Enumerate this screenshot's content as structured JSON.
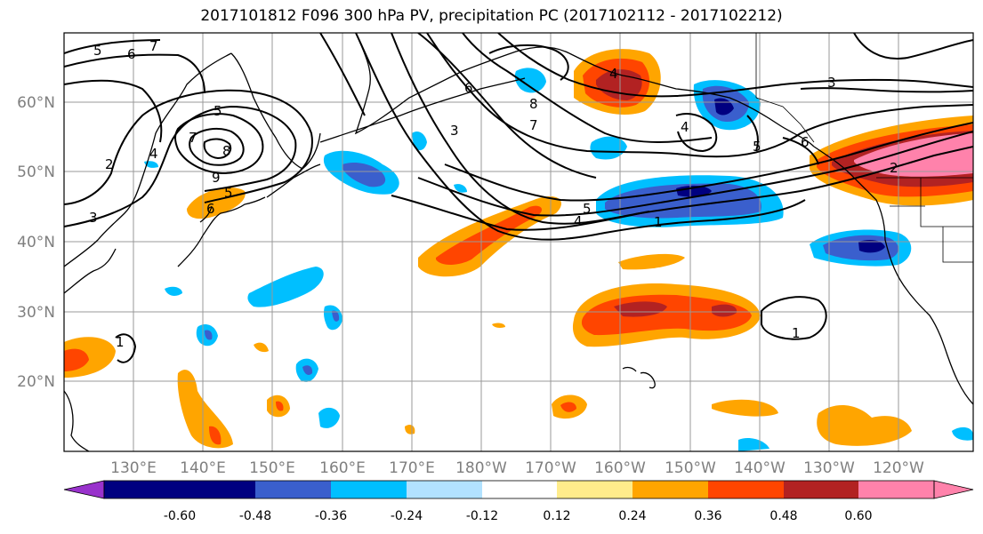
{
  "title": "2017101812 F096 300 hPa PV, precipitation PC (2017102112 - 2017102212)",
  "lat_labels": [
    "60°N",
    "50°N",
    "40°N",
    "30°N",
    "20°N"
  ],
  "lon_labels": [
    "130°E",
    "140°E",
    "150°E",
    "160°E",
    "170°E",
    "180°W",
    "170°W",
    "160°W",
    "150°W",
    "140°W",
    "130°W",
    "120°W"
  ],
  "colorbar": {
    "colors": [
      "#9932cc",
      "#000080",
      "#3a5fcd",
      "#00bfff",
      "#b2e2ff",
      "#ffffff",
      "#ffec8b",
      "#ffa500",
      "#ff4500",
      "#b22222",
      "#ff82ab"
    ],
    "tick_labels": [
      "-0.60",
      "-0.48",
      "-0.36",
      "-0.24",
      "-0.12",
      "0.12",
      "0.24",
      "0.36",
      "0.48",
      "0.60"
    ]
  },
  "pv_contour_labels": [
    "5",
    "6",
    "7",
    "5",
    "4",
    "2",
    "3",
    "8",
    "9",
    "5",
    "6",
    "7",
    "8",
    "6",
    "7",
    "4",
    "3",
    "4",
    "5",
    "4",
    "1",
    "5",
    "6",
    "2",
    "3",
    "1",
    "1"
  ]
}
